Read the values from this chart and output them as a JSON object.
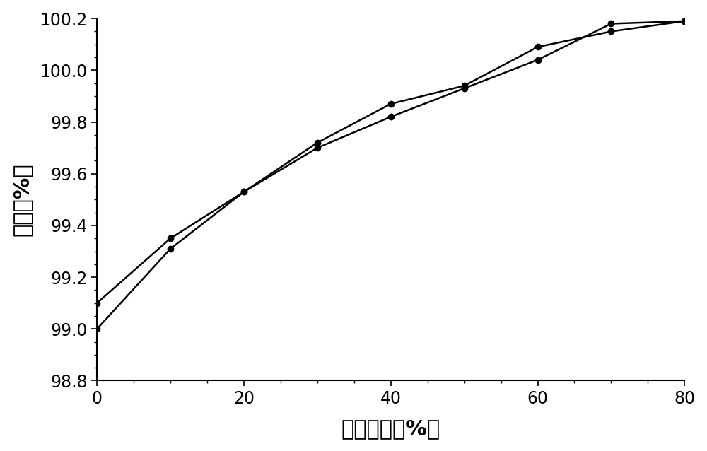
{
  "curve1_x": [
    0,
    10,
    20,
    30,
    40,
    50,
    60,
    70,
    80
  ],
  "curve1_y": [
    99.1,
    99.35,
    99.53,
    99.72,
    99.87,
    99.94,
    100.09,
    100.15,
    100.19
  ],
  "curve2_x": [
    0,
    10,
    20,
    30,
    40,
    50,
    60,
    70,
    80
  ],
  "curve2_y": [
    99.0,
    99.31,
    99.53,
    99.7,
    99.82,
    99.93,
    100.04,
    100.18,
    100.19
  ],
  "xlabel": "相对湿度（%）",
  "ylabel": "重量（%）",
  "xlim": [
    0,
    80
  ],
  "ylim": [
    98.8,
    100.2
  ],
  "xticks": [
    0,
    20,
    40,
    60,
    80
  ],
  "yticks": [
    98.8,
    99.0,
    99.2,
    99.4,
    99.6,
    99.8,
    100.0,
    100.2
  ],
  "line_color": "#000000",
  "marker": "o",
  "marker_size": 6,
  "line_width": 1.8,
  "xlabel_fontsize": 22,
  "ylabel_fontsize": 22,
  "tick_fontsize": 17,
  "background_color": "#ffffff"
}
